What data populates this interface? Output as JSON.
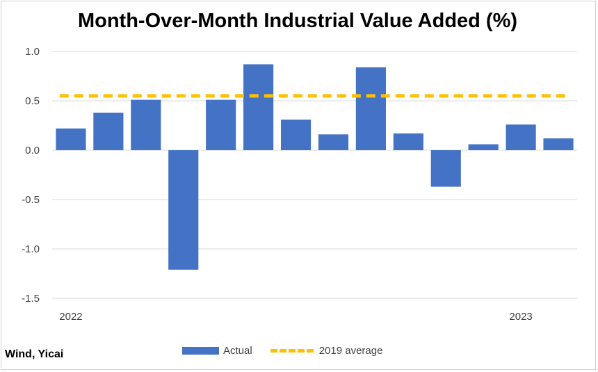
{
  "chart_data": {
    "type": "bar",
    "title": "Month-Over-Month Industrial Value Added (%)",
    "xlabel": "",
    "ylabel": "",
    "ylim": [
      -1.5,
      1.0
    ],
    "y_ticks": [
      "1.0",
      "0.5",
      "0.0",
      "-0.5",
      "-1.0",
      "-1.5"
    ],
    "y_tick_values": [
      1.0,
      0.5,
      0.0,
      -0.5,
      -1.0,
      -1.5
    ],
    "x_tick_labels": [
      {
        "index": 0,
        "label": "2022"
      },
      {
        "index": 12,
        "label": "2023"
      }
    ],
    "values": [
      0.22,
      0.38,
      0.51,
      -1.21,
      0.51,
      0.87,
      0.31,
      0.16,
      0.84,
      0.17,
      -0.37,
      0.06,
      0.26,
      0.12
    ],
    "series": [
      {
        "name": "Actual",
        "kind": "bar",
        "color": "#4472c4"
      },
      {
        "name": "2019 average",
        "kind": "dashed-line",
        "value": 0.55,
        "color": "#ffc000"
      }
    ],
    "grid": true,
    "legend_position": "bottom"
  },
  "source": "Wind, Yicai"
}
